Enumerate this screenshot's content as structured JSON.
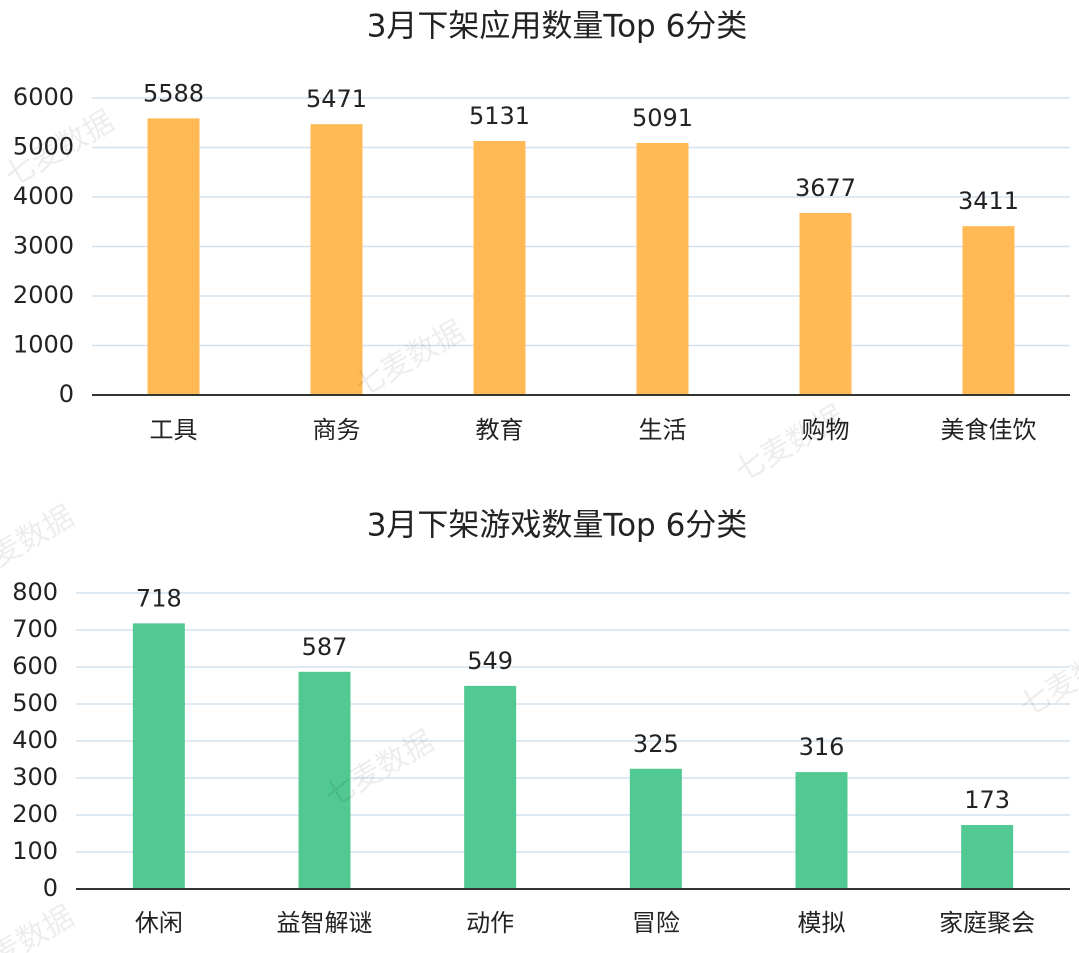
{
  "chart_data": [
    {
      "type": "bar",
      "title": "3月下架应用数量Top 6分类",
      "categories": [
        "工具",
        "商务",
        "教育",
        "生活",
        "购物",
        "美食佳饮"
      ],
      "values": [
        5588,
        5471,
        5131,
        5091,
        3677,
        3411
      ],
      "color": "#ffb955",
      "ylim": [
        0,
        6000
      ],
      "yticks": [
        0,
        1000,
        2000,
        3000,
        4000,
        5000,
        6000
      ],
      "grid": true
    },
    {
      "type": "bar",
      "title": "3月下架游戏数量Top 6分类",
      "categories": [
        "休闲",
        "益智解谜",
        "动作",
        "冒险",
        "模拟",
        "家庭聚会"
      ],
      "values": [
        718,
        587,
        549,
        325,
        316,
        173
      ],
      "color": "#52c993",
      "ylim": [
        0,
        800
      ],
      "yticks": [
        0,
        100,
        200,
        300,
        400,
        500,
        600,
        700,
        800
      ],
      "grid": true
    }
  ],
  "watermark": "七麦数据"
}
